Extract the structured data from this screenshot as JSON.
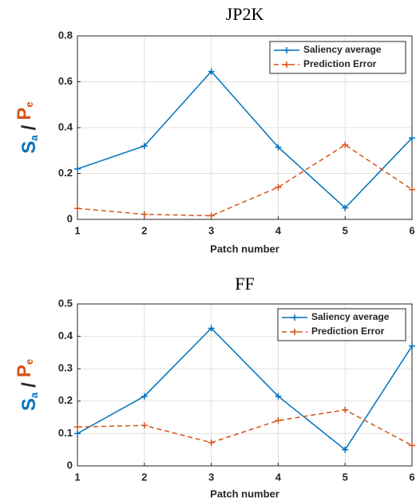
{
  "chart_data": [
    {
      "type": "line",
      "title": "JP2K",
      "x_label": "Patch number",
      "y_label": {
        "s": "S",
        "s_sub": "a",
        "sep": "/",
        "p": "P",
        "p_sub": "e"
      },
      "x": [
        1,
        2,
        3,
        4,
        5,
        6
      ],
      "xlim": [
        1,
        6
      ],
      "xticks": [
        1,
        2,
        3,
        4,
        5,
        6
      ],
      "ylim": [
        0,
        0.8
      ],
      "yticks": [
        0,
        0.2,
        0.4,
        0.6,
        0.8
      ],
      "grid": true,
      "legend": "upper right",
      "series": [
        {
          "name": "Saliency average",
          "color": "#0072bd",
          "linestyle": "solid",
          "values": [
            0.22,
            0.32,
            0.645,
            0.315,
            0.05,
            0.355
          ]
        },
        {
          "name": "Prediction Error",
          "color": "#d95319",
          "linestyle": "dashed",
          "values": [
            0.048,
            0.022,
            0.016,
            0.14,
            0.325,
            0.13
          ]
        }
      ]
    },
    {
      "type": "line",
      "title": "FF",
      "x_label": "Patch number",
      "y_label": {
        "s": "S",
        "s_sub": "a",
        "sep": "/",
        "p": "P",
        "p_sub": "e"
      },
      "x": [
        1,
        2,
        3,
        4,
        5,
        6
      ],
      "xlim": [
        1,
        6
      ],
      "xticks": [
        1,
        2,
        3,
        4,
        5,
        6
      ],
      "ylim": [
        0,
        0.5
      ],
      "yticks": [
        0,
        0.1,
        0.2,
        0.3,
        0.4,
        0.5
      ],
      "grid": true,
      "legend": "upper right",
      "series": [
        {
          "name": "Saliency average",
          "color": "#0072bd",
          "linestyle": "solid",
          "values": [
            0.1,
            0.215,
            0.425,
            0.215,
            0.05,
            0.37
          ]
        },
        {
          "name": "Prediction Error",
          "color": "#d95319",
          "linestyle": "dashed",
          "values": [
            0.12,
            0.125,
            0.072,
            0.14,
            0.173,
            0.063
          ]
        }
      ]
    }
  ]
}
